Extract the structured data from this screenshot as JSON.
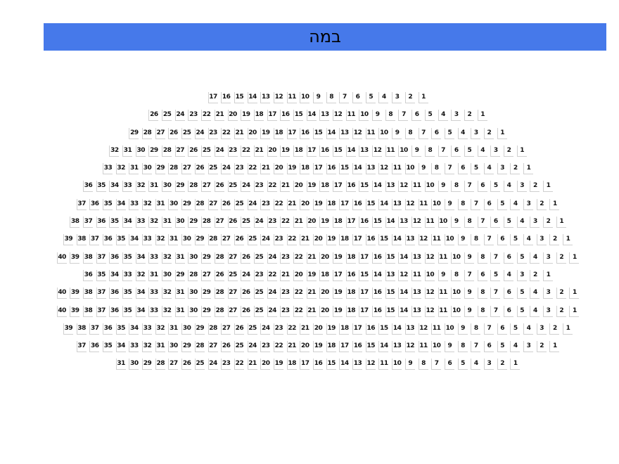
{
  "stage": {
    "label": "במה",
    "color": "#4679ea"
  },
  "rows": [
    {
      "seats": 17
    },
    {
      "seats": 26
    },
    {
      "seats": 29
    },
    {
      "seats": 32
    },
    {
      "seats": 33
    },
    {
      "seats": 36
    },
    {
      "seats": 37
    },
    {
      "seats": 38
    },
    {
      "seats": 39
    },
    {
      "seats": 40
    },
    {
      "seats": 36
    },
    {
      "seats": 40
    },
    {
      "seats": 40
    },
    {
      "seats": 39
    },
    {
      "seats": 37
    },
    {
      "seats": 31
    }
  ]
}
